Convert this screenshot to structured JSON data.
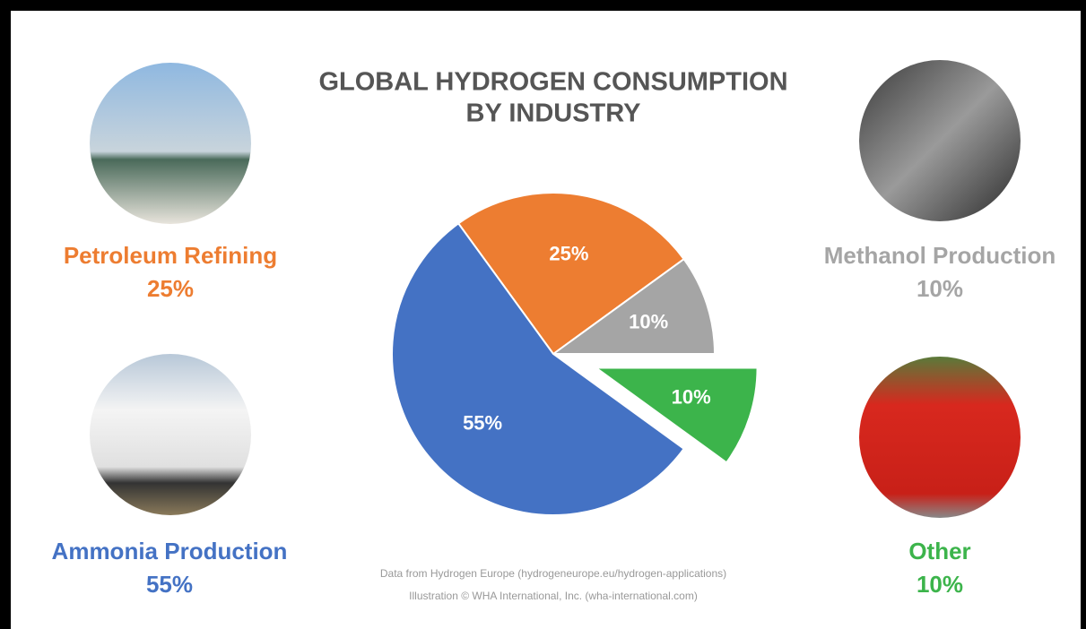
{
  "chart_data": {
    "type": "pie",
    "title_lines": [
      "GLOBAL HYDROGEN CONSUMPTION",
      "BY INDUSTRY"
    ],
    "categories": [
      "Petroleum Refining",
      "Methanol Production",
      "Other",
      "Ammonia Production"
    ],
    "values": [
      25,
      10,
      10,
      55
    ],
    "value_labels": [
      "25%",
      "10%",
      "10%",
      "55%"
    ],
    "colors": [
      "#ed7d31",
      "#a5a5a5",
      "#3cb44b",
      "#4472c4"
    ],
    "explode": [
      false,
      false,
      true,
      false
    ],
    "notes": [
      "Data from Hydrogen Europe (hydrogeneurope.eu/hydrogen-applications)",
      "Illustration © WHA International, Inc. (wha-international.com)"
    ]
  }
}
